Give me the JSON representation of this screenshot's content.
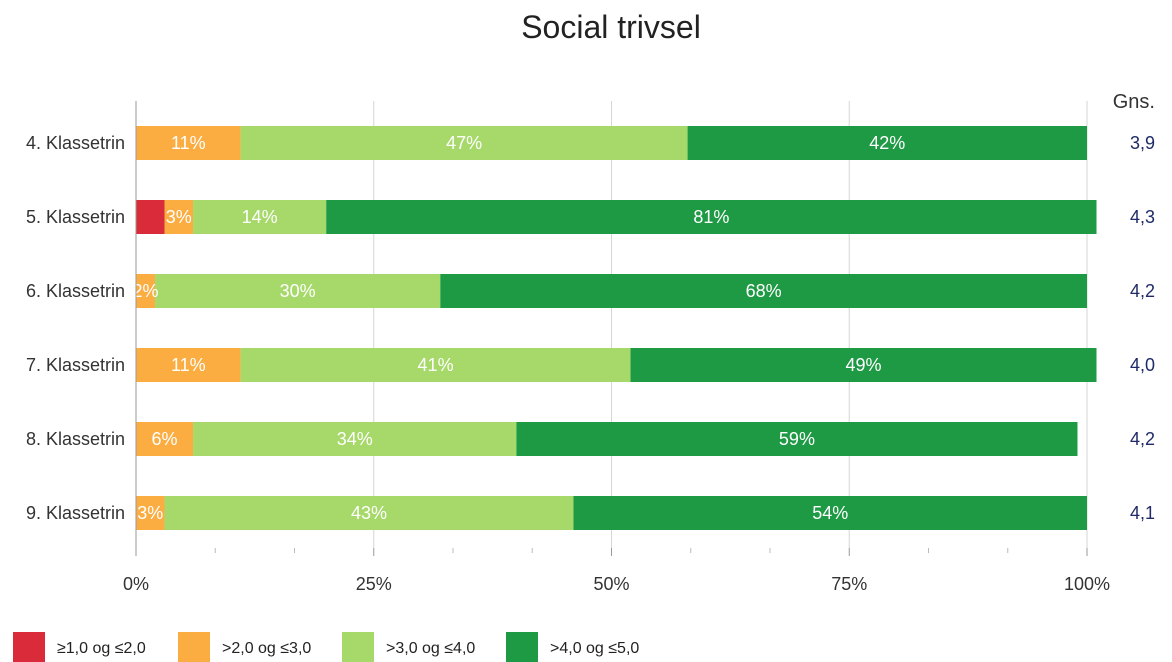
{
  "chart_data": {
    "type": "bar",
    "orientation": "horizontal",
    "stacked": true,
    "title": "Social trivsel",
    "categories": [
      "4. Klassetrin",
      "5. Klassetrin",
      "6. Klassetrin",
      "7. Klassetrin",
      "8. Klassetrin",
      "9. Klassetrin"
    ],
    "series": [
      {
        "name": "≥1,0 og ≤2,0",
        "color": "#d92b3a",
        "values": [
          0,
          3,
          0,
          0,
          0,
          0
        ],
        "labels": [
          "",
          "",
          "",
          "",
          "",
          ""
        ]
      },
      {
        "name": ">2,0 og ≤3,0",
        "color": "#fbad42",
        "values": [
          11,
          3,
          2,
          11,
          6,
          3
        ],
        "labels": [
          "11%",
          "3%",
          "2%",
          "11%",
          "6%",
          "3%"
        ]
      },
      {
        "name": ">3,0 og ≤4,0",
        "color": "#a6d96a",
        "values": [
          47,
          14,
          30,
          41,
          34,
          43
        ],
        "labels": [
          "47%",
          "14%",
          "30%",
          "41%",
          "34%",
          "43%"
        ]
      },
      {
        "name": ">4,0 og ≤5,0",
        "color": "#1e9a44",
        "values": [
          42,
          81,
          68,
          49,
          59,
          54
        ],
        "labels": [
          "42%",
          "81%",
          "68%",
          "49%",
          "59%",
          "54%"
        ]
      }
    ],
    "xlim": [
      0,
      100
    ],
    "x_ticks": [
      "0%",
      "25%",
      "50%",
      "75%",
      "100%"
    ],
    "grid": true,
    "legend_position": "bottom-left",
    "average_header": "Gns.",
    "averages": [
      "3,9",
      "4,3",
      "4,2",
      "4,0",
      "4,2",
      "4,1"
    ]
  }
}
